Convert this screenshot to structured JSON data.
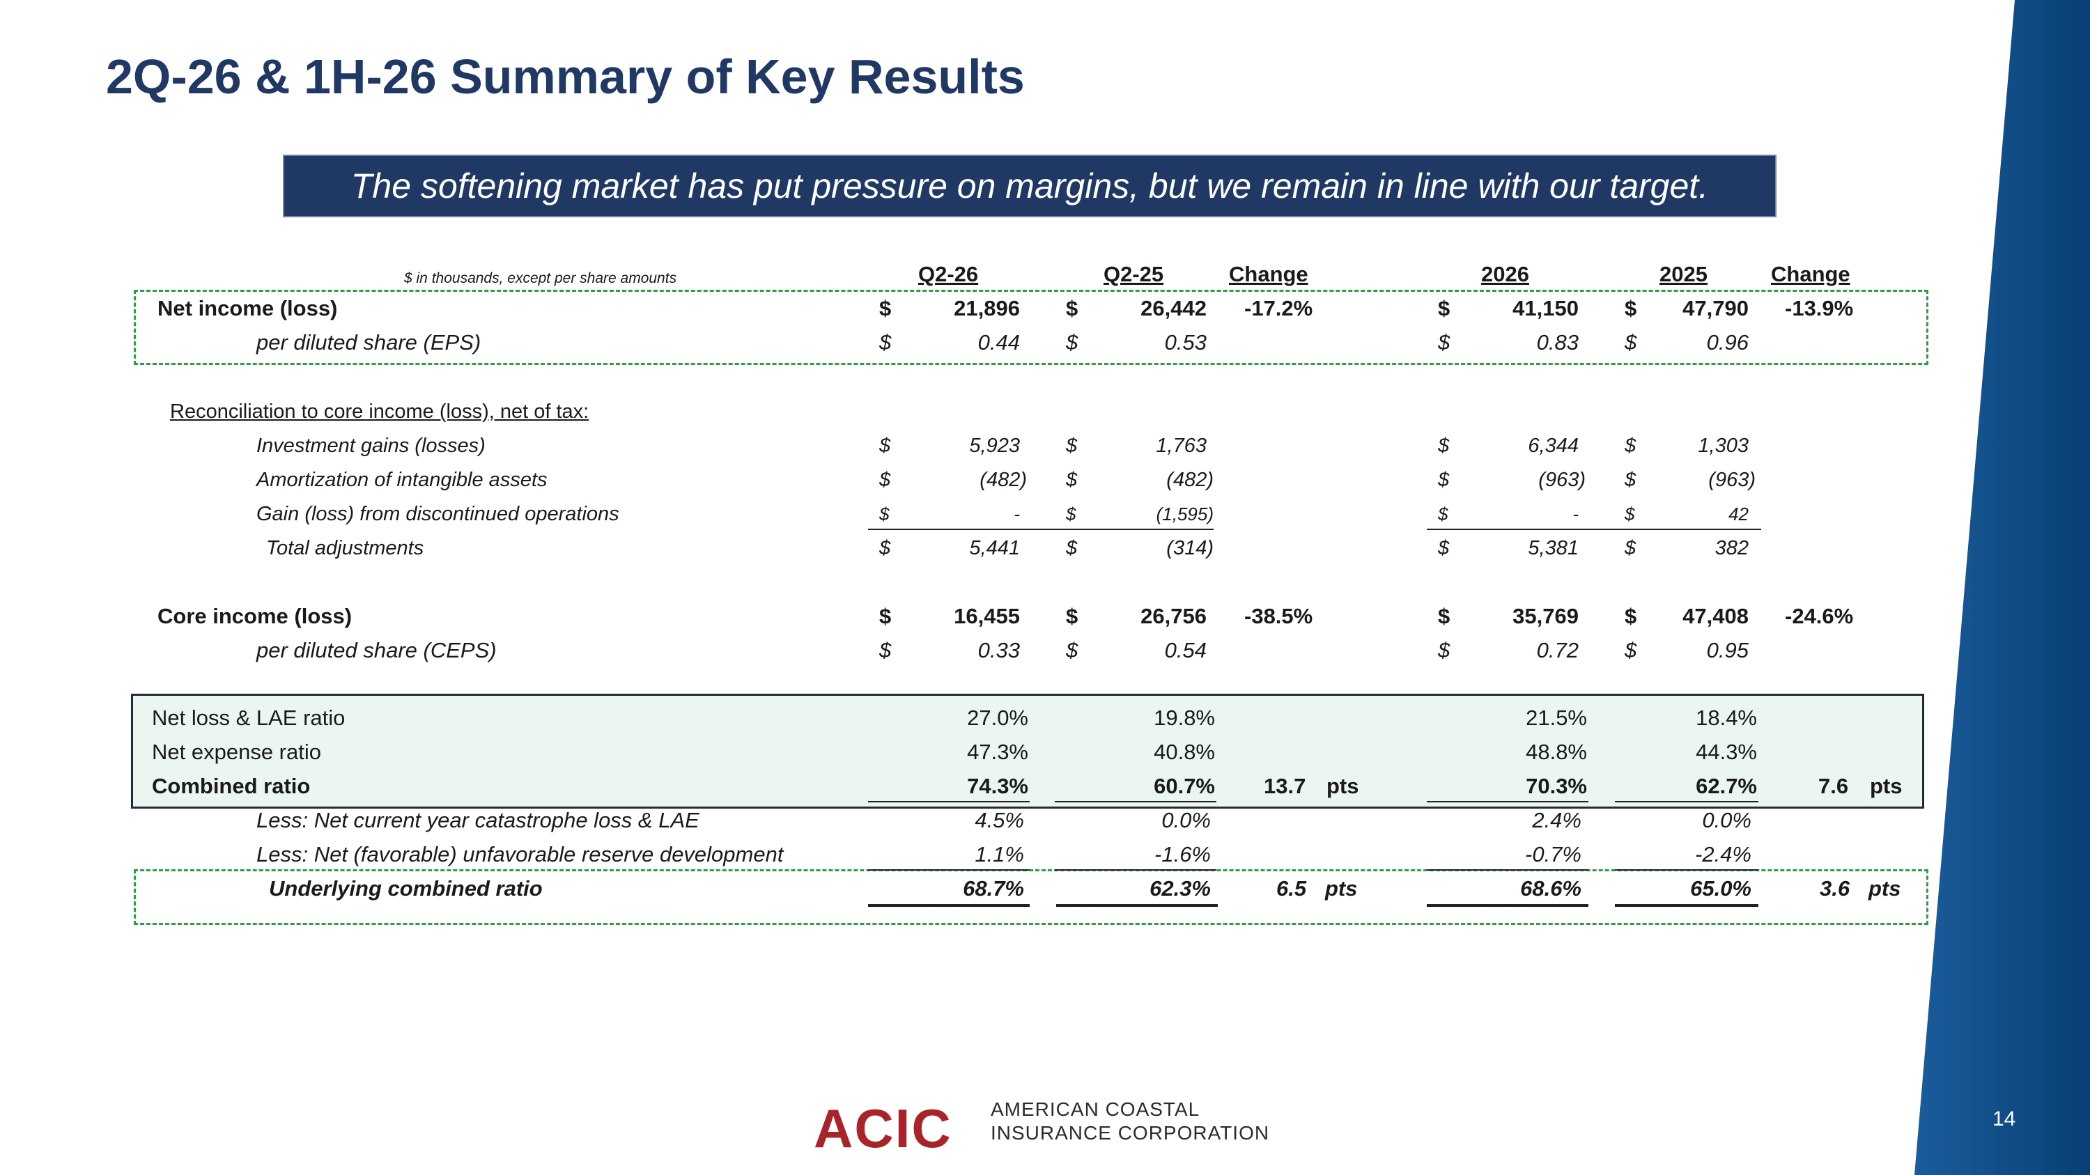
{
  "title": "2Q-26 & 1H-26 Summary of Key Results",
  "banner": "The softening market has put pressure on margins, but we remain in line with  our target.",
  "units_note": "$ in thousands, except per share amounts",
  "headers": {
    "q_cur": "Q2-26",
    "q_prior": "Q2-25",
    "q_change": "Change",
    "y_cur": "2026",
    "y_prior": "2025",
    "y_change": "Change"
  },
  "dollar": "$",
  "pts": "pts",
  "rows": {
    "net_income": {
      "label": "Net income (loss)",
      "q_cur": "21,896",
      "q_prior": "26,442",
      "q_change": "-17.2%",
      "y_cur": "41,150",
      "y_prior": "47,790",
      "y_change": "-13.9%"
    },
    "eps": {
      "label": "per diluted share (EPS)",
      "q_cur": "0.44",
      "q_prior": "0.53",
      "y_cur": "0.83",
      "y_prior": "0.96"
    },
    "recon": {
      "label": "Reconciliation to core income (loss), net of tax:"
    },
    "inv_gains": {
      "label": "Investment gains (losses)",
      "q_cur": "5,923",
      "q_prior": "1,763",
      "y_cur": "6,344",
      "y_prior": "1,303"
    },
    "amort": {
      "label": "Amortization of intangible assets",
      "q_cur": "(482)",
      "q_prior": "(482)",
      "y_cur": "(963)",
      "y_prior": "(963)"
    },
    "disc_ops": {
      "label": "Gain (loss) from discontinued operations",
      "q_cur": "-",
      "q_prior": "(1,595)",
      "y_cur": "-",
      "y_prior": "42"
    },
    "total_adj": {
      "label": "Total adjustments",
      "q_cur": "5,441",
      "q_prior": "(314)",
      "y_cur": "5,381",
      "y_prior": "382"
    },
    "core_income": {
      "label": "Core income (loss)",
      "q_cur": "16,455",
      "q_prior": "26,756",
      "q_change": "-38.5%",
      "y_cur": "35,769",
      "y_prior": "47,408",
      "y_change": "-24.6%"
    },
    "ceps": {
      "label": "per diluted share (CEPS)",
      "q_cur": "0.33",
      "q_prior": "0.54",
      "y_cur": "0.72",
      "y_prior": "0.95"
    },
    "loss_lae": {
      "label": "Net loss & LAE ratio",
      "q_cur": "27.0%",
      "q_prior": "19.8%",
      "y_cur": "21.5%",
      "y_prior": "18.4%"
    },
    "expense": {
      "label": "Net expense ratio",
      "q_cur": "47.3%",
      "q_prior": "40.8%",
      "y_cur": "48.8%",
      "y_prior": "44.3%"
    },
    "combined": {
      "label": "Combined ratio",
      "q_cur": "74.3%",
      "q_prior": "60.7%",
      "q_change": "13.7",
      "y_cur": "70.3%",
      "y_prior": "62.7%",
      "y_change": "7.6"
    },
    "cat": {
      "label": "Less:  Net current year catastrophe loss & LAE",
      "q_cur": "4.5%",
      "q_prior": "0.0%",
      "y_cur": "2.4%",
      "y_prior": "0.0%"
    },
    "reserve": {
      "label": "Less: Net (favorable) unfavorable reserve development",
      "q_cur": "1.1%",
      "q_prior": "-1.6%",
      "y_cur": "-0.7%",
      "y_prior": "-2.4%"
    },
    "underlying": {
      "label": "Underlying combined ratio",
      "q_cur": "68.7%",
      "q_prior": "62.3%",
      "q_change": "6.5",
      "y_cur": "68.6%",
      "y_prior": "65.0%",
      "y_change": "3.6"
    }
  },
  "logo": {
    "mark": "ACIC",
    "line1": "AMERICAN COASTAL",
    "line2": "INSURANCE CORPORATION"
  },
  "page_number": "14",
  "colors": {
    "title": "#1f3864",
    "banner_bg": "#1f3864",
    "highlight_bg": "#eaf6ef",
    "dash": "#2e9e46",
    "brand_red": "#a8232a",
    "side_band": "#0b4f8a"
  }
}
